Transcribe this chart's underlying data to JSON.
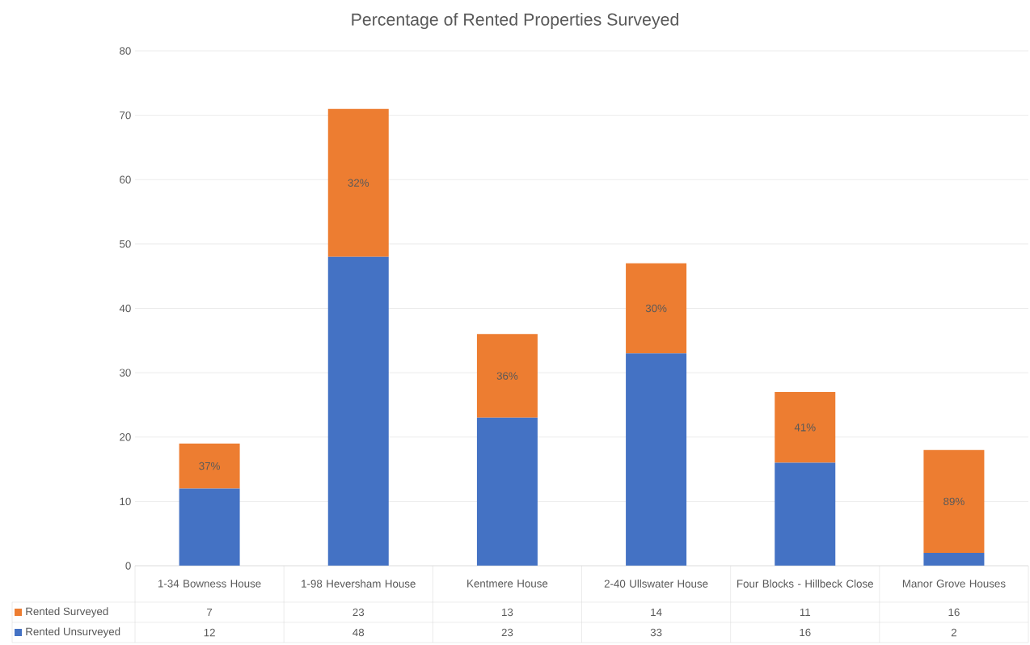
{
  "chart_data": {
    "type": "bar",
    "title": "Percentage of Rented Properties Surveyed",
    "stacked": true,
    "categories": [
      "1-34 Bowness House",
      "1-98 Heversham House",
      "Kentmere House",
      "2-40 Ullswater House",
      "Four Blocks -  Hillbeck Close",
      "Manor Grove Houses"
    ],
    "series": [
      {
        "name": "Rented Unsurveyed",
        "color": "#4472c4",
        "values": [
          12,
          48,
          23,
          33,
          16,
          2
        ]
      },
      {
        "name": "Rented Surveyed",
        "color": "#ed7d31",
        "values": [
          7,
          23,
          13,
          14,
          11,
          16
        ]
      }
    ],
    "annotations": [
      "37%",
      "32%",
      "36%",
      "30%",
      "41%",
      "89%"
    ],
    "ylim": [
      0,
      80
    ],
    "yticks": [
      0,
      10,
      20,
      30,
      40,
      50,
      60,
      70,
      80
    ],
    "grid": "y",
    "legend": "bottom",
    "data_labels": true
  }
}
